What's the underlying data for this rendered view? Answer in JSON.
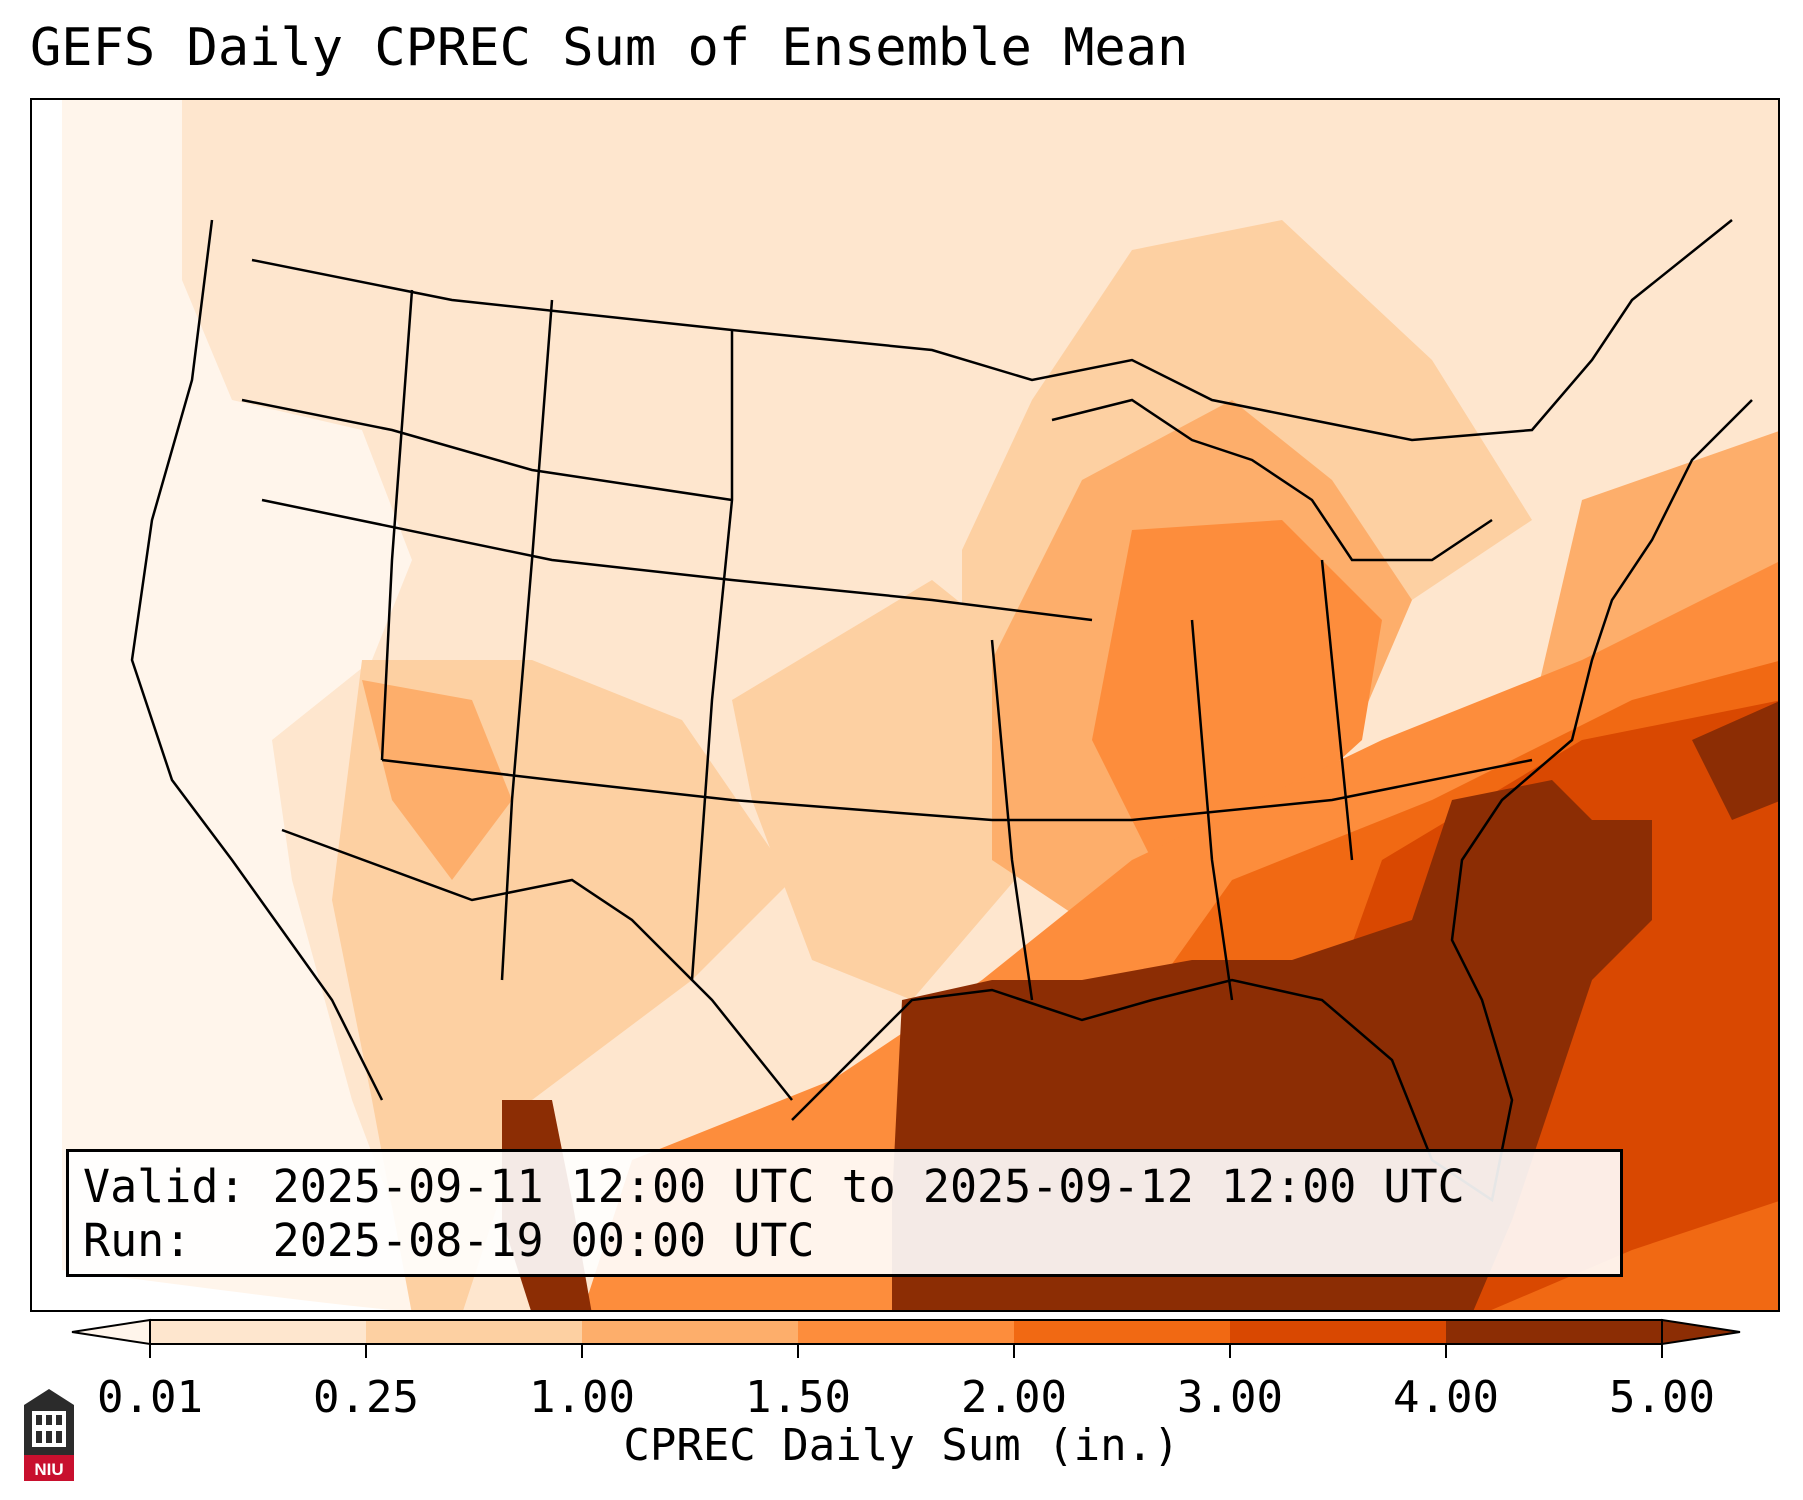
{
  "title": "GEFS Daily CPREC Sum of Ensemble Mean",
  "info": {
    "valid": "Valid: 2025-09-11 12:00 UTC to 2025-09-12 12:00 UTC",
    "run": "Run:   2025-08-19 00:00 UTC"
  },
  "colorbar": {
    "label": "CPREC Daily Sum (in.)",
    "ticks": [
      "0.01",
      "0.25",
      "1.00",
      "1.50",
      "2.00",
      "3.00",
      "4.00",
      "5.00"
    ],
    "colors": [
      "#fff5eb",
      "#fee6ce",
      "#fdd0a2",
      "#fdae6b",
      "#fd8d3c",
      "#f16913",
      "#d94801",
      "#8c2d04"
    ]
  },
  "logo": {
    "text": "NIU"
  }
}
